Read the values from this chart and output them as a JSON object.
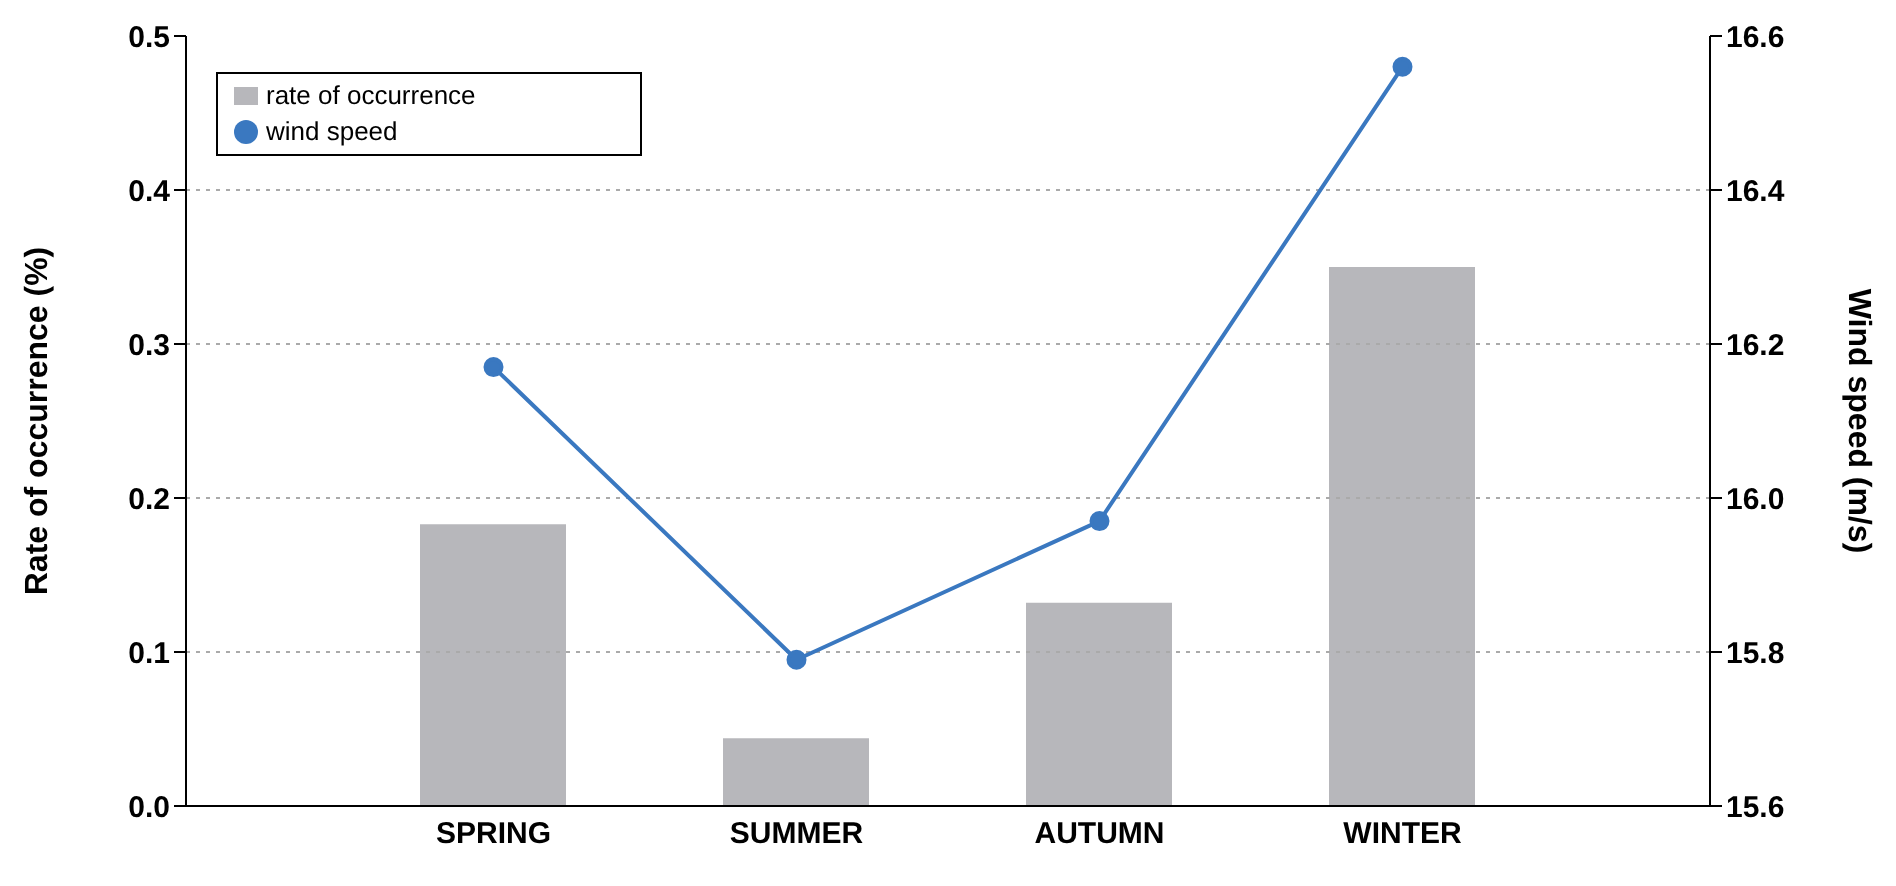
{
  "chart_data": {
    "type": "bar",
    "categories": [
      "SPRING",
      "SUMMER",
      "AUTUMN",
      "WINTER"
    ],
    "series": [
      {
        "name": "rate of occurrence",
        "color": "#b7b7bb",
        "values": [
          0.183,
          0.044,
          0.132,
          0.35
        ]
      },
      {
        "name": "wind speed",
        "type": "line",
        "axis": "y2",
        "color": "#3a78c0",
        "values": [
          16.17,
          15.79,
          15.97,
          16.56
        ]
      }
    ],
    "ylabel": "Rate of occurrence (%)",
    "y2label": "Wind speed (m/s)",
    "ylim": [
      0,
      0.5
    ],
    "yticks": [
      {
        "value": 0,
        "label": "0.0"
      },
      0.1,
      0.2,
      0.3,
      0.4,
      0.5
    ],
    "y2lim": [
      15.6,
      16.6
    ],
    "y2ticks": [
      15.6,
      15.8,
      {
        "value": 16,
        "label": "16.0"
      },
      16.2,
      16.4,
      16.6
    ],
    "grid": "y",
    "legend": "top left",
    "marker": "circle",
    "line_style": "solid"
  }
}
